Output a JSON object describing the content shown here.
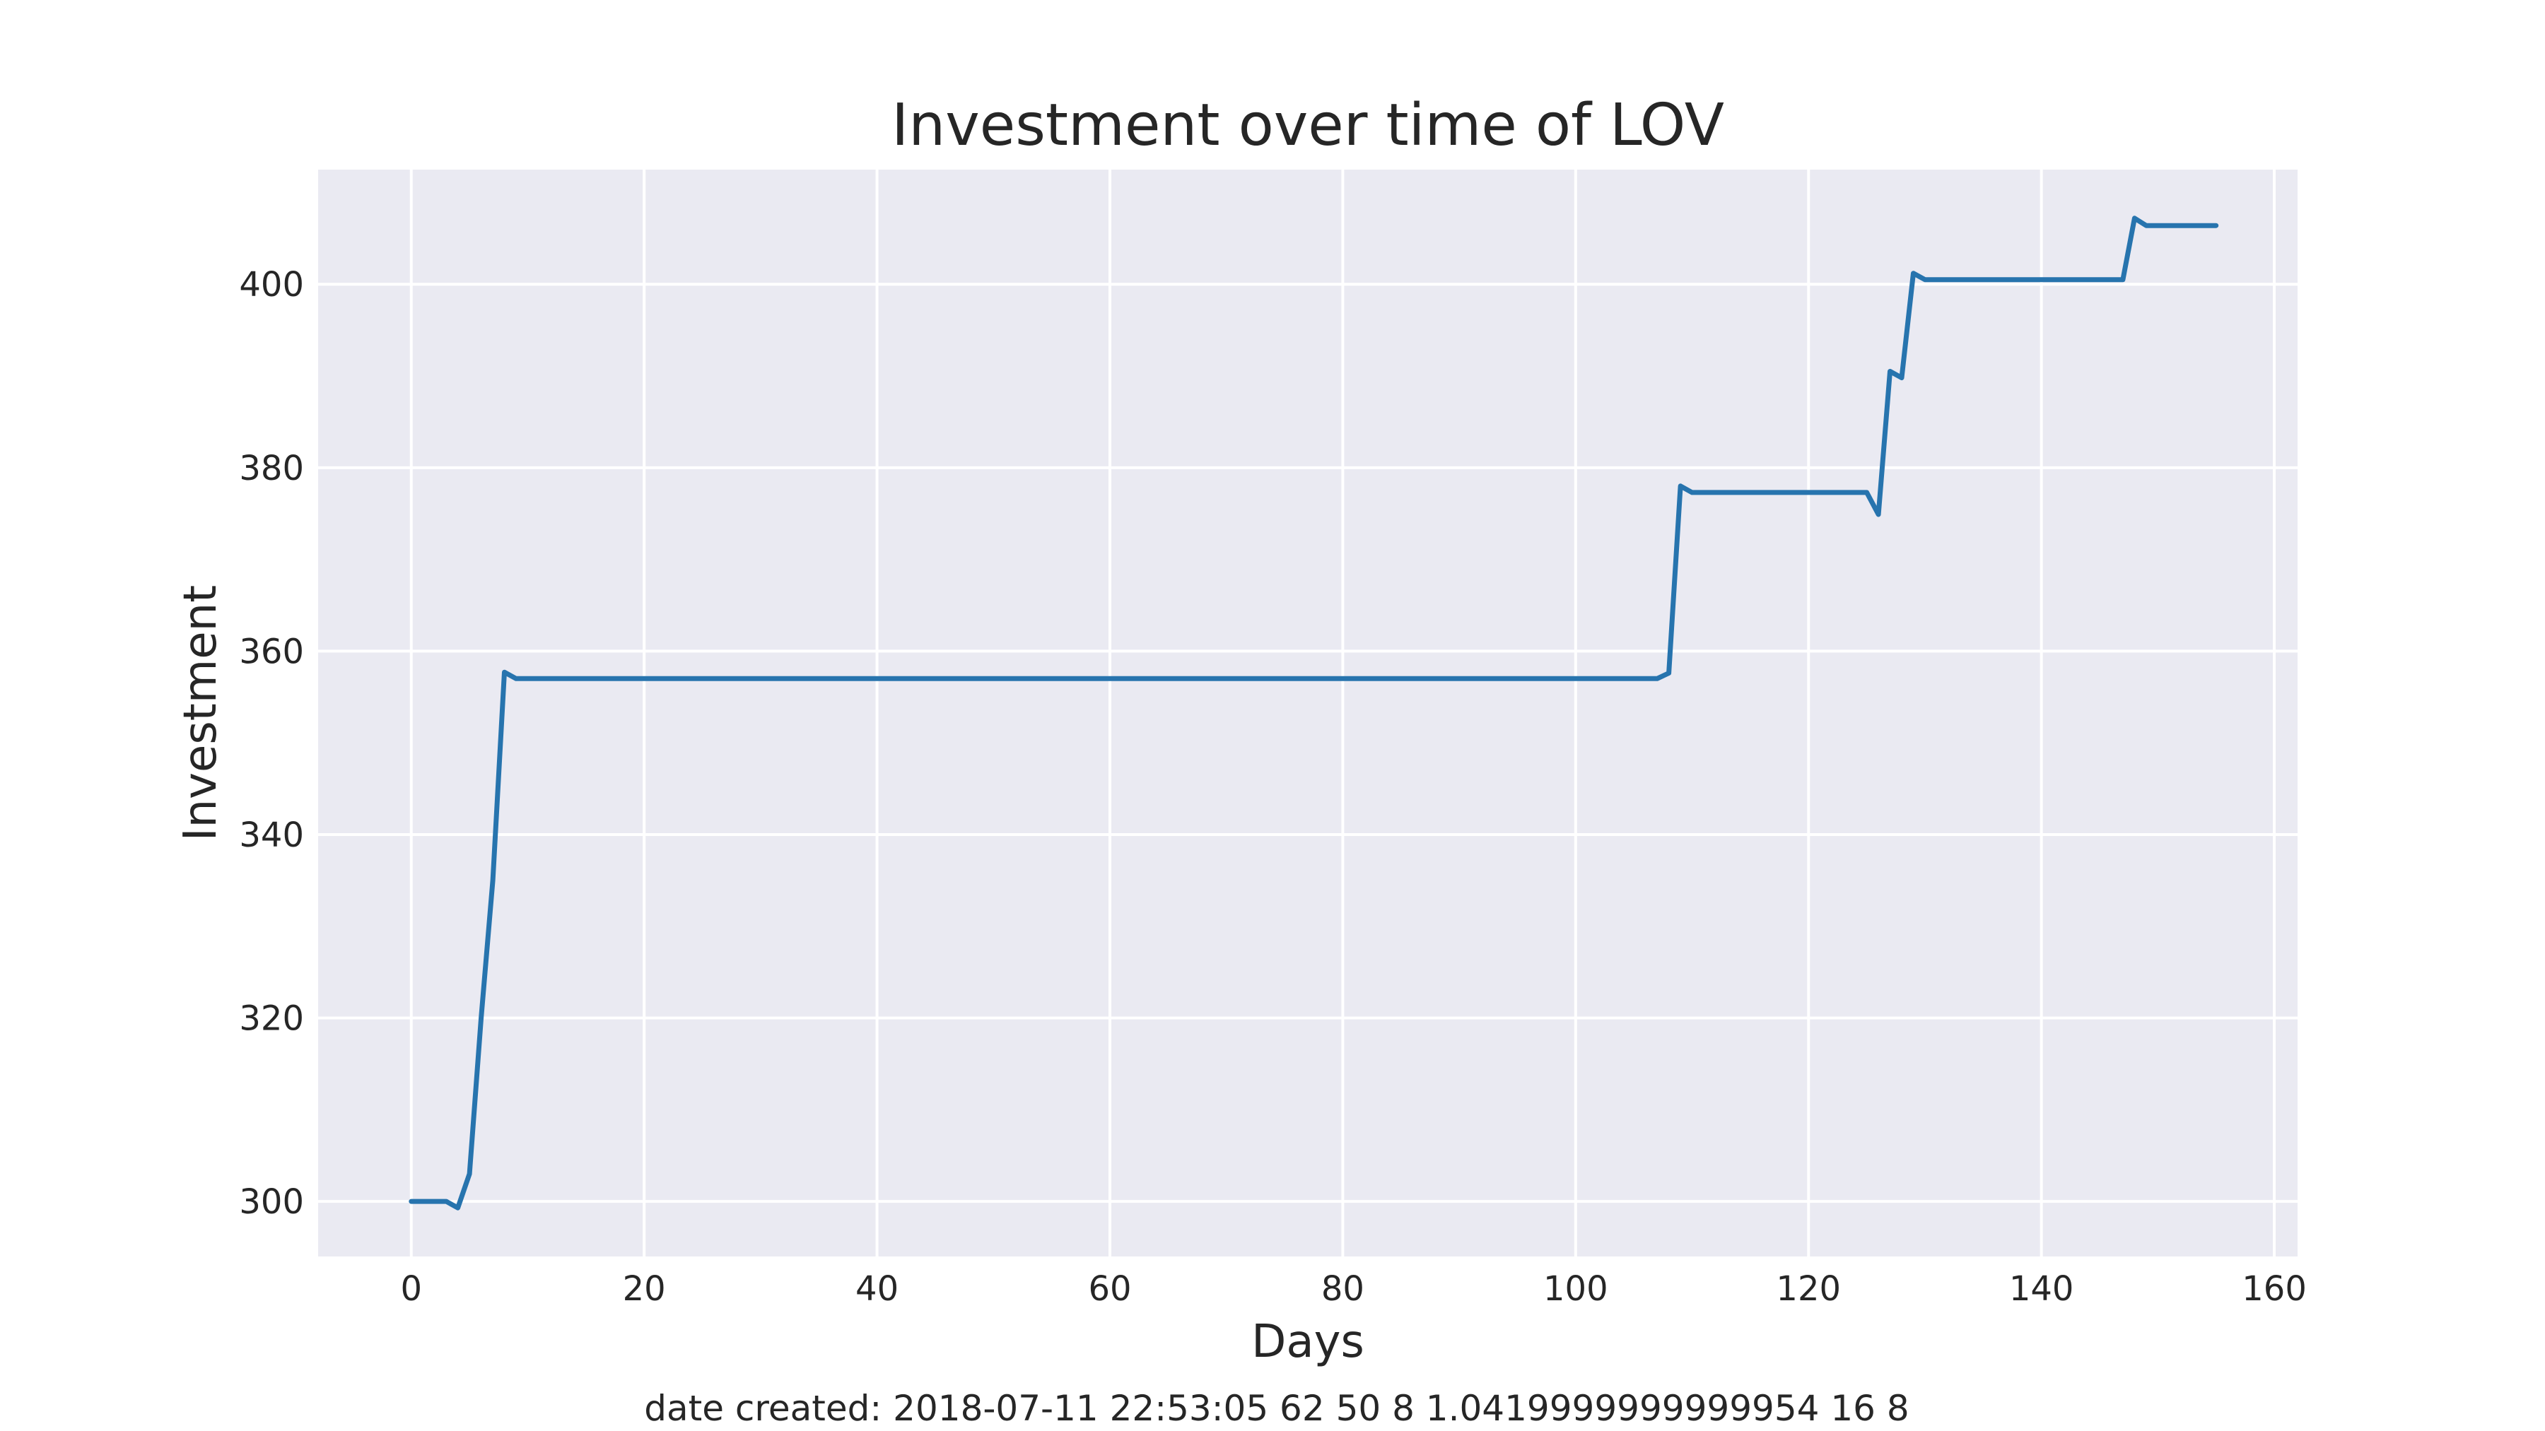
{
  "chart_data": {
    "type": "line",
    "title": "Investment over time of LOV",
    "xlabel": "Days",
    "ylabel": "Investment",
    "xlim": [
      -8,
      162
    ],
    "ylim": [
      294,
      412.5
    ],
    "xticks": [
      0,
      20,
      40,
      60,
      80,
      100,
      120,
      140,
      160
    ],
    "yticks": [
      300,
      320,
      340,
      360,
      380,
      400
    ],
    "grid": true,
    "legend": "none",
    "background_color": "#eaeaf2",
    "grid_color": "#ffffff",
    "series": [
      {
        "color": "#2774ae",
        "x": [
          0,
          3,
          4,
          5,
          6,
          7,
          8,
          9,
          107,
          108,
          109,
          110,
          125,
          126,
          127,
          128,
          129,
          130,
          147,
          148,
          149,
          155
        ],
        "y": [
          300,
          300,
          299.3,
          303,
          320,
          335,
          357.7,
          357,
          357,
          357.6,
          378,
          377.3,
          377.3,
          374.9,
          390.5,
          389.8,
          401.2,
          400.5,
          400.5,
          407.2,
          406.4,
          406.4
        ]
      }
    ]
  },
  "footer": "date created: 2018-07-11 22:53:05 62 50 8 1.0419999999999954 16 8"
}
